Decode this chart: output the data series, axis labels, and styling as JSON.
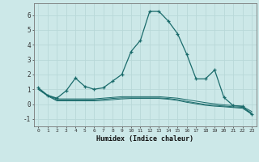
{
  "xlabel": "Humidex (Indice chaleur)",
  "bg_color": "#cce8e8",
  "line_color": "#1a6b6b",
  "grid_color": "#b8d8d8",
  "xlim": [
    -0.5,
    23.5
  ],
  "ylim": [
    -1.5,
    6.8
  ],
  "xticks": [
    0,
    1,
    2,
    3,
    4,
    5,
    6,
    7,
    8,
    9,
    10,
    11,
    12,
    13,
    14,
    15,
    16,
    17,
    18,
    19,
    20,
    21,
    22,
    23
  ],
  "yticks": [
    -1,
    0,
    1,
    2,
    3,
    4,
    5,
    6
  ],
  "line1_x": [
    0,
    1,
    2,
    3,
    4,
    5,
    6,
    7,
    8,
    9,
    10,
    11,
    12,
    13,
    14,
    15,
    16,
    17,
    18,
    19,
    20,
    21,
    22,
    23
  ],
  "line1_y": [
    1.1,
    0.6,
    0.4,
    0.9,
    1.75,
    1.2,
    1.0,
    1.1,
    1.55,
    2.0,
    3.55,
    4.3,
    6.25,
    6.25,
    5.6,
    4.75,
    3.35,
    1.7,
    1.7,
    2.3,
    0.45,
    -0.1,
    -0.15,
    -0.7
  ],
  "line2_x": [
    0,
    1,
    2,
    3,
    4,
    5,
    6,
    7,
    8,
    9,
    10,
    11,
    12,
    13,
    14,
    15,
    16,
    17,
    18,
    19,
    20,
    21,
    22,
    23
  ],
  "line2_y": [
    1.0,
    0.6,
    0.35,
    0.35,
    0.35,
    0.35,
    0.35,
    0.4,
    0.45,
    0.5,
    0.5,
    0.5,
    0.5,
    0.5,
    0.45,
    0.4,
    0.3,
    0.2,
    0.1,
    0.02,
    -0.05,
    -0.1,
    -0.15,
    -0.5
  ],
  "line3_x": [
    0,
    1,
    2,
    3,
    4,
    5,
    6,
    7,
    8,
    9,
    10,
    11,
    12,
    13,
    14,
    15,
    16,
    17,
    18,
    19,
    20,
    21,
    22,
    23
  ],
  "line3_y": [
    1.0,
    0.58,
    0.28,
    0.28,
    0.28,
    0.28,
    0.28,
    0.32,
    0.38,
    0.42,
    0.42,
    0.42,
    0.42,
    0.42,
    0.38,
    0.3,
    0.18,
    0.08,
    -0.02,
    -0.08,
    -0.13,
    -0.18,
    -0.22,
    -0.6
  ],
  "line4_x": [
    0,
    1,
    2,
    3,
    4,
    5,
    6,
    7,
    8,
    9,
    10,
    11,
    12,
    13,
    14,
    15,
    16,
    17,
    18,
    19,
    20,
    21,
    22,
    23
  ],
  "line4_y": [
    1.0,
    0.55,
    0.22,
    0.22,
    0.22,
    0.22,
    0.22,
    0.25,
    0.3,
    0.35,
    0.38,
    0.38,
    0.38,
    0.38,
    0.33,
    0.25,
    0.12,
    0.02,
    -0.08,
    -0.14,
    -0.18,
    -0.23,
    -0.28,
    -0.68
  ]
}
